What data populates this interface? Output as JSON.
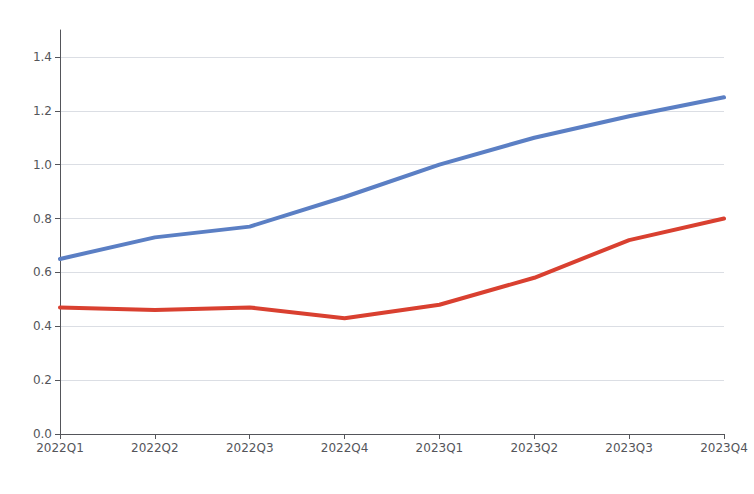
{
  "chart_data": {
    "type": "line",
    "categories": [
      "2022Q1",
      "2022Q2",
      "2022Q3",
      "2022Q4",
      "2023Q1",
      "2023Q2",
      "2023Q3",
      "2023Q4"
    ],
    "series": [
      {
        "color": "#5b7fc4",
        "values": [
          0.65,
          0.73,
          0.77,
          0.88,
          1.0,
          1.1,
          1.18,
          1.25
        ]
      },
      {
        "color": "#d94030",
        "values": [
          0.47,
          0.46,
          0.47,
          0.43,
          0.48,
          0.58,
          0.72,
          0.8
        ]
      }
    ],
    "ylim": [
      0.0,
      1.5
    ],
    "yticks": [
      {
        "value": 0,
        "label": "0.0"
      },
      0.2,
      0.4,
      0.6,
      0.8,
      {
        "value": 1,
        "label": "1.0"
      },
      1.2,
      1.4
    ],
    "grid": true
  }
}
